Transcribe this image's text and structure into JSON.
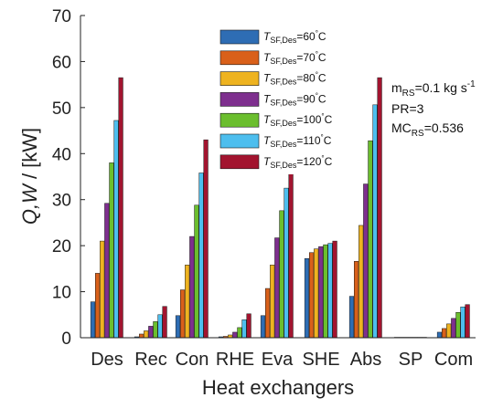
{
  "chart_data": {
    "type": "bar",
    "xlabel": "Heat exchangers",
    "ylabel_main": "Q,W",
    "ylabel_unit": " / [kW]",
    "ylim": [
      0,
      70
    ],
    "yticks": [
      "0",
      "10",
      "20",
      "30",
      "40",
      "50",
      "60",
      "70"
    ],
    "grid": false,
    "legend_position": "top-center",
    "categories": [
      "Des",
      "Rec",
      "Con",
      "RHE",
      "Eva",
      "SHE",
      "Abs",
      "SP",
      "Com"
    ],
    "series": [
      {
        "name": "T_SF,Des=60 °C",
        "values": [
          7.8,
          0.2,
          4.8,
          0.2,
          4.8,
          17.2,
          9.0,
          0.1,
          1.2
        ],
        "color": "#2E6DB4"
      },
      {
        "name": "T_SF,Des=70 °C",
        "values": [
          14.0,
          0.8,
          10.4,
          0.3,
          10.7,
          18.5,
          16.6,
          0.1,
          2.0
        ],
        "color": "#D9601A"
      },
      {
        "name": "T_SF,Des=80 °C",
        "values": [
          21.0,
          1.5,
          15.8,
          0.6,
          15.8,
          19.3,
          24.4,
          0.1,
          3.0
        ],
        "color": "#EEB320"
      },
      {
        "name": "T_SF,Des=90 °C",
        "values": [
          29.2,
          2.5,
          22.0,
          1.2,
          21.7,
          19.8,
          33.4,
          0.1,
          4.2
        ],
        "color": "#7E2F8E"
      },
      {
        "name": "T_SF,Des=100 °C",
        "values": [
          38.0,
          3.5,
          28.8,
          2.2,
          27.6,
          20.2,
          42.8,
          0.1,
          5.5
        ],
        "color": "#6BBE2E"
      },
      {
        "name": "T_SF,Des=110 °C",
        "values": [
          47.2,
          5.0,
          35.8,
          3.9,
          32.5,
          20.5,
          50.6,
          0.1,
          6.7
        ],
        "color": "#4DBEEE"
      },
      {
        "name": "T_SF,Des=120 °C",
        "values": [
          56.5,
          6.8,
          43.0,
          5.2,
          36.0,
          21.0,
          56.5,
          0.1,
          7.2
        ],
        "color": "#A2142F"
      }
    ],
    "legend": {
      "t_main": "T",
      "t_sub": "SF,Des",
      "entries": [
        {
          "value": "=60",
          "unit": "C"
        },
        {
          "value": "=70",
          "unit": "C"
        },
        {
          "value": "=80",
          "unit": "C"
        },
        {
          "value": "=90",
          "unit": "C"
        },
        {
          "value": "=100",
          "unit": "C"
        },
        {
          "value": "=110",
          "unit": "C"
        },
        {
          "value": "=120",
          "unit": "C"
        }
      ]
    },
    "annotations": {
      "mrs_main": "m",
      "mrs_sub": "RS",
      "mrs_value": "=0.1 kg s",
      "mrs_exp": "-1",
      "pr": "PR=3",
      "mc_main": "MC",
      "mc_sub": "RS",
      "mc_value": "=0.536"
    }
  }
}
